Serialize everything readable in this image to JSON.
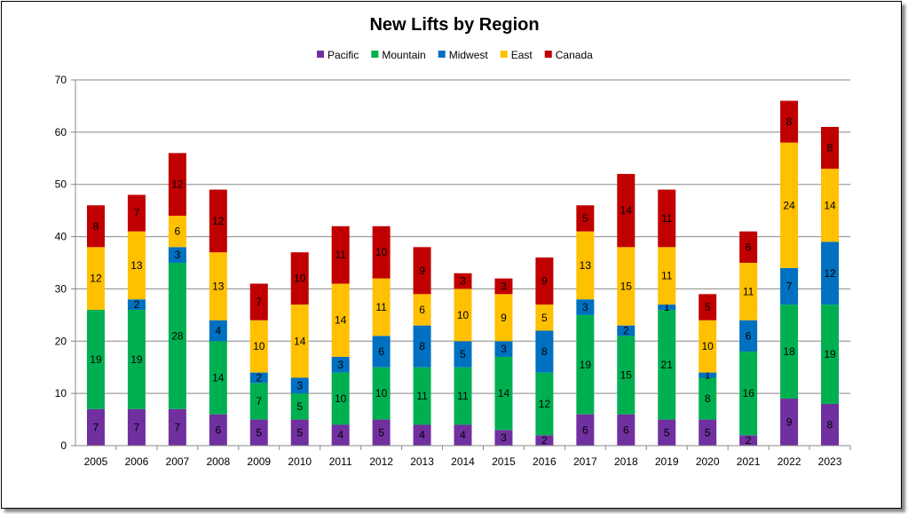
{
  "chart_data": {
    "type": "bar",
    "stacked": true,
    "title": "New Lifts by Region",
    "xlabel": "",
    "ylabel": "",
    "ylim": [
      0,
      70
    ],
    "yticks": [
      0,
      10,
      20,
      30,
      40,
      50,
      60,
      70
    ],
    "grid": true,
    "legend_position": "top",
    "categories": [
      "2005",
      "2006",
      "2007",
      "2008",
      "2009",
      "2010",
      "2011",
      "2012",
      "2013",
      "2014",
      "2015",
      "2016",
      "2017",
      "2018",
      "2019",
      "2020",
      "2021",
      "2022",
      "2023"
    ],
    "series": [
      {
        "name": "Pacific",
        "color": "#7030A0",
        "values": [
          7,
          7,
          7,
          6,
          5,
          5,
          4,
          5,
          4,
          4,
          3,
          2,
          6,
          6,
          5,
          5,
          2,
          9,
          8
        ]
      },
      {
        "name": "Mountain",
        "color": "#00B050",
        "values": [
          19,
          19,
          28,
          14,
          7,
          5,
          10,
          10,
          11,
          11,
          14,
          12,
          19,
          15,
          21,
          8,
          16,
          18,
          19
        ]
      },
      {
        "name": "Midwest",
        "color": "#0070C0",
        "values": [
          0,
          2,
          3,
          4,
          2,
          3,
          3,
          6,
          8,
          5,
          3,
          8,
          3,
          2,
          1,
          1,
          6,
          7,
          12
        ]
      },
      {
        "name": "East",
        "color": "#FFC000",
        "values": [
          12,
          13,
          6,
          13,
          10,
          14,
          14,
          11,
          6,
          10,
          9,
          5,
          13,
          15,
          11,
          10,
          11,
          24,
          14
        ]
      },
      {
        "name": "Canada",
        "color": "#C00000",
        "values": [
          8,
          7,
          12,
          12,
          7,
          10,
          11,
          10,
          9,
          3,
          3,
          9,
          5,
          14,
          11,
          5,
          6,
          8,
          8
        ]
      }
    ]
  }
}
